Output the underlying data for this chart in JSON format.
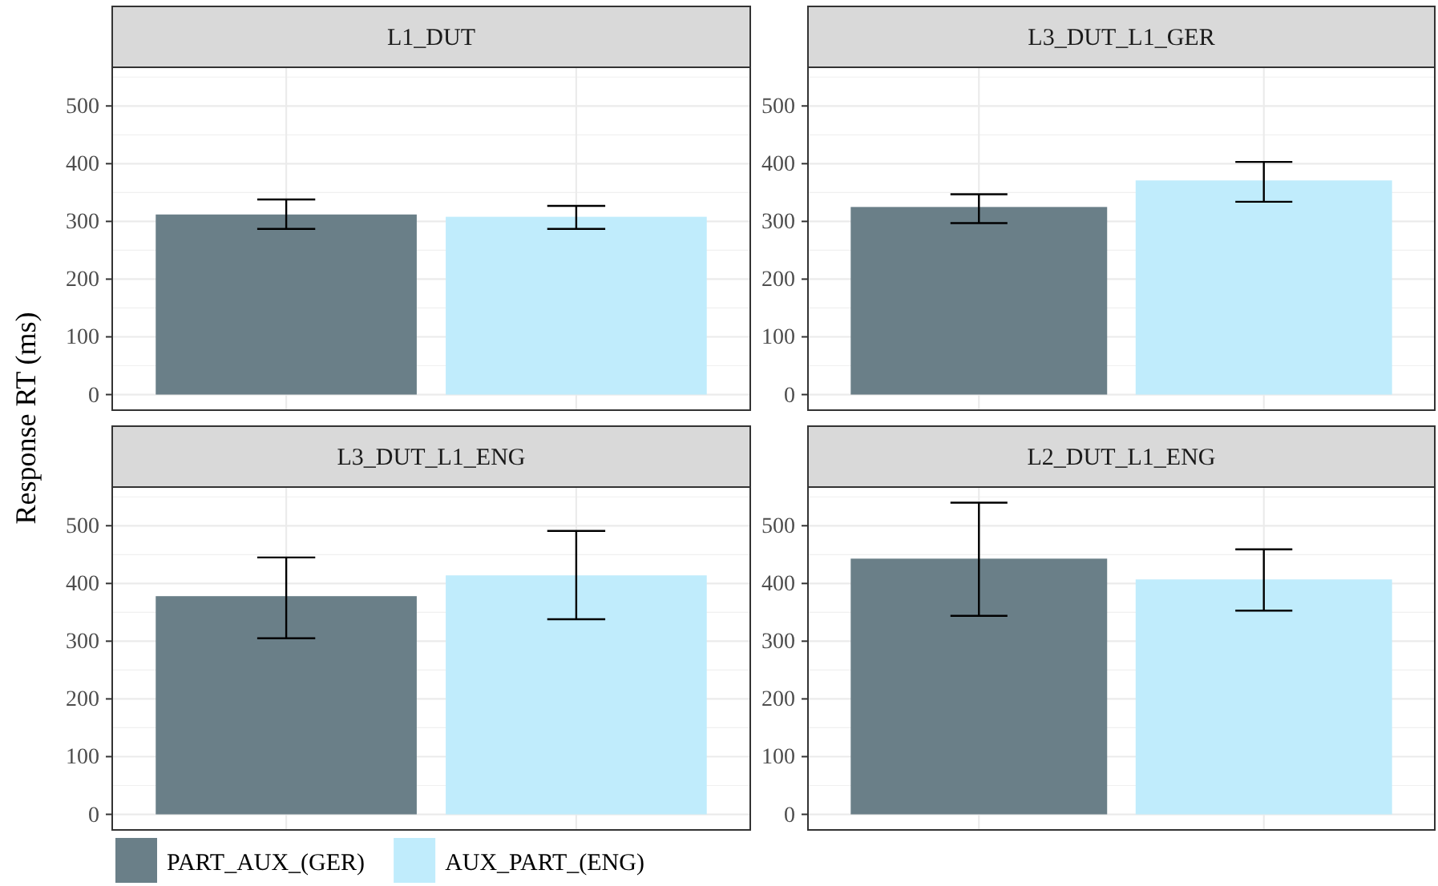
{
  "chart_data": [
    {
      "type": "bar",
      "title": "L1_DUT",
      "ylabel": "Response RT (ms)",
      "categories": [
        null
      ],
      "ylim": [
        -27,
        567
      ],
      "yticks": [
        0,
        100,
        200,
        300,
        400,
        500
      ],
      "grid": true,
      "tick_labels": "y",
      "legend": "bottom",
      "series": [
        {
          "name": "PART_AUX_(GER)",
          "color": "#6a7f88",
          "values": [
            312
          ],
          "errors": [
            [
              287,
              338
            ]
          ]
        },
        {
          "name": "AUX_PART_(ENG)",
          "color": "#c0ecfc",
          "values": [
            308
          ],
          "errors": [
            [
              287,
              327
            ]
          ]
        }
      ]
    },
    {
      "type": "bar",
      "title": "L3_DUT_L1_GER",
      "categories": [
        null
      ],
      "ylim": [
        -27,
        567
      ],
      "yticks": [
        0,
        100,
        200,
        300,
        400,
        500
      ],
      "grid": true,
      "tick_labels": "y",
      "series": [
        {
          "color": "#6a7f88",
          "values": [
            325
          ],
          "errors": [
            [
              297,
              347
            ]
          ]
        },
        {
          "color": "#c0ecfc",
          "values": [
            371
          ],
          "errors": [
            [
              334,
              403
            ]
          ]
        }
      ]
    },
    {
      "type": "bar",
      "title": "L3_DUT_L1_ENG",
      "categories": [
        null
      ],
      "ylim": [
        -27,
        567
      ],
      "yticks": [
        0,
        100,
        200,
        300,
        400,
        500
      ],
      "grid": true,
      "tick_labels": "y",
      "series": [
        {
          "color": "#6a7f88",
          "values": [
            378
          ],
          "errors": [
            [
              305,
              445
            ]
          ]
        },
        {
          "color": "#c0ecfc",
          "values": [
            414
          ],
          "errors": [
            [
              338,
              491
            ]
          ]
        }
      ]
    },
    {
      "type": "bar",
      "title": "L2_DUT_L1_ENG",
      "categories": [
        null
      ],
      "ylim": [
        -27,
        567
      ],
      "yticks": [
        0,
        100,
        200,
        300,
        400,
        500
      ],
      "grid": true,
      "tick_labels": "y",
      "series": [
        {
          "color": "#6a7f88",
          "values": [
            443
          ],
          "errors": [
            [
              344,
              540
            ]
          ]
        },
        {
          "color": "#c0ecfc",
          "values": [
            407
          ],
          "errors": [
            [
              353,
              459
            ]
          ]
        }
      ]
    }
  ]
}
